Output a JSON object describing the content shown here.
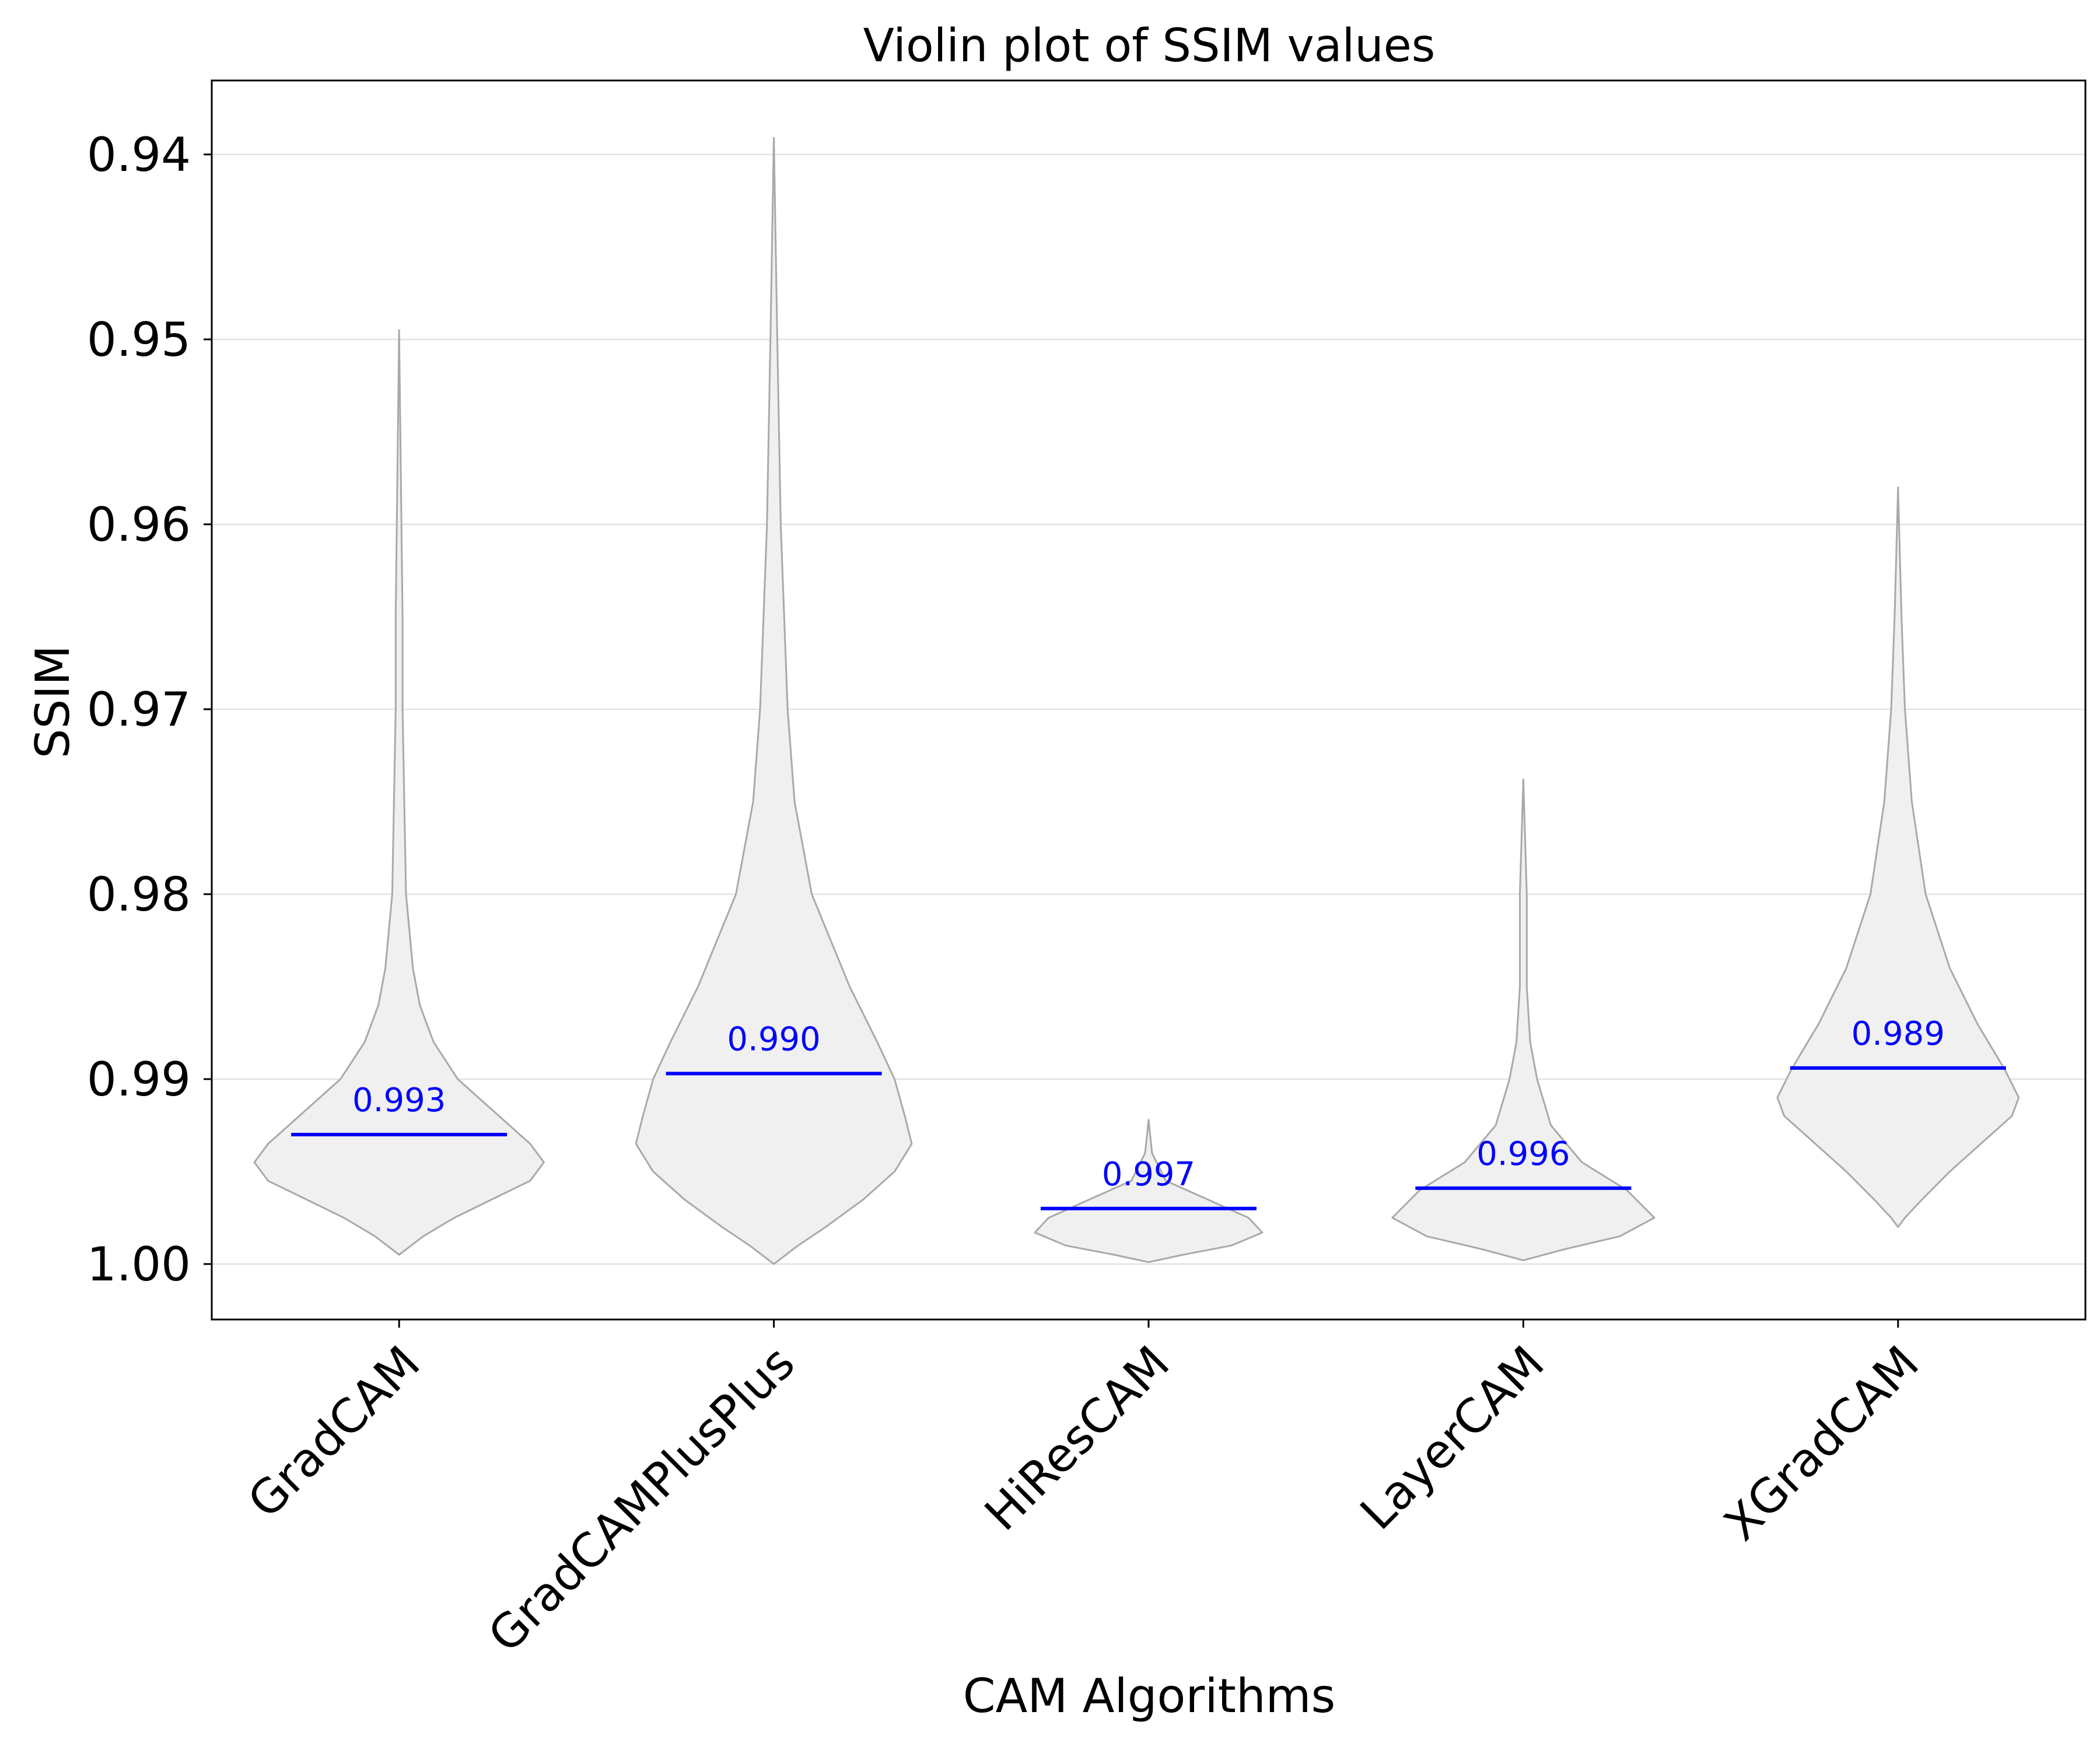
{
  "chart_data": {
    "type": "violin",
    "title": "Violin plot of SSIM values",
    "xlabel": "CAM Algorithms",
    "ylabel": "SSIM",
    "ylim": [
      0.936,
      1.003
    ],
    "y_inverted": true,
    "yticks": [
      0.94,
      0.95,
      0.96,
      0.97,
      0.98,
      0.99,
      1.0
    ],
    "ytick_labels": [
      "0.94",
      "0.95",
      "0.96",
      "0.97",
      "0.98",
      "0.99",
      "1.00"
    ],
    "grid": "horizontal",
    "legend": "none",
    "colors": {
      "violin_fill": "#f0f0f0",
      "violin_edge": "#a9a9a9",
      "median": "#0000ff",
      "grid": "#dddddd"
    },
    "categories": [
      "GradCAM",
      "GradCAMPlusPlus",
      "HiResCAM",
      "LayerCAM",
      "XGradCAM"
    ],
    "violins": [
      {
        "name": "GradCAM",
        "median": 0.993,
        "median_label": "0.993",
        "min": 0.9495,
        "max": 0.9995,
        "profile": [
          [
            0.9495,
            0.0
          ],
          [
            0.965,
            0.01
          ],
          [
            0.97,
            0.01
          ],
          [
            0.98,
            0.02
          ],
          [
            0.984,
            0.04
          ],
          [
            0.986,
            0.06
          ],
          [
            0.988,
            0.1
          ],
          [
            0.99,
            0.17
          ],
          [
            0.992,
            0.29
          ],
          [
            0.9935,
            0.38
          ],
          [
            0.9945,
            0.42
          ],
          [
            0.9955,
            0.38
          ],
          [
            0.9965,
            0.27
          ],
          [
            0.9975,
            0.16
          ],
          [
            0.9985,
            0.07
          ],
          [
            0.9995,
            0.0
          ]
        ]
      },
      {
        "name": "GradCAMPlusPlus",
        "median": 0.9897,
        "median_label": "0.990",
        "min": 0.9391,
        "max": 1.0,
        "profile": [
          [
            0.9391,
            0.0
          ],
          [
            0.95,
            0.01
          ],
          [
            0.96,
            0.02
          ],
          [
            0.97,
            0.04
          ],
          [
            0.975,
            0.06
          ],
          [
            0.98,
            0.11
          ],
          [
            0.985,
            0.22
          ],
          [
            0.988,
            0.3
          ],
          [
            0.99,
            0.35
          ],
          [
            0.992,
            0.38
          ],
          [
            0.9935,
            0.4
          ],
          [
            0.995,
            0.35
          ],
          [
            0.9965,
            0.26
          ],
          [
            0.998,
            0.15
          ],
          [
            0.999,
            0.07
          ],
          [
            1.0,
            0.0
          ]
        ]
      },
      {
        "name": "HiResCAM",
        "median": 0.997,
        "median_label": "0.997",
        "min": 0.9922,
        "max": 0.9999,
        "profile": [
          [
            0.9922,
            0.0
          ],
          [
            0.994,
            0.01
          ],
          [
            0.9955,
            0.05
          ],
          [
            0.9965,
            0.17
          ],
          [
            0.9975,
            0.29
          ],
          [
            0.9983,
            0.33
          ],
          [
            0.999,
            0.24
          ],
          [
            0.9995,
            0.1
          ],
          [
            0.9999,
            0.0
          ]
        ]
      },
      {
        "name": "LayerCAM",
        "median": 0.9959,
        "median_label": "0.996",
        "min": 0.9738,
        "max": 0.9998,
        "profile": [
          [
            0.9738,
            0.0
          ],
          [
            0.98,
            0.01
          ],
          [
            0.985,
            0.01
          ],
          [
            0.988,
            0.02
          ],
          [
            0.99,
            0.04
          ],
          [
            0.9925,
            0.08
          ],
          [
            0.9945,
            0.17
          ],
          [
            0.996,
            0.3
          ],
          [
            0.9975,
            0.38
          ],
          [
            0.9985,
            0.28
          ],
          [
            0.9992,
            0.12
          ],
          [
            0.9998,
            0.0
          ]
        ]
      },
      {
        "name": "XGradCAM",
        "median": 0.9894,
        "median_label": "0.989",
        "min": 0.958,
        "max": 0.998,
        "profile": [
          [
            0.958,
            0.0
          ],
          [
            0.965,
            0.01
          ],
          [
            0.97,
            0.02
          ],
          [
            0.975,
            0.04
          ],
          [
            0.98,
            0.08
          ],
          [
            0.984,
            0.15
          ],
          [
            0.987,
            0.23
          ],
          [
            0.9895,
            0.31
          ],
          [
            0.991,
            0.35
          ],
          [
            0.992,
            0.33
          ],
          [
            0.9935,
            0.24
          ],
          [
            0.995,
            0.15
          ],
          [
            0.9965,
            0.07
          ],
          [
            0.9975,
            0.02
          ],
          [
            0.998,
            0.0
          ]
        ]
      }
    ]
  }
}
